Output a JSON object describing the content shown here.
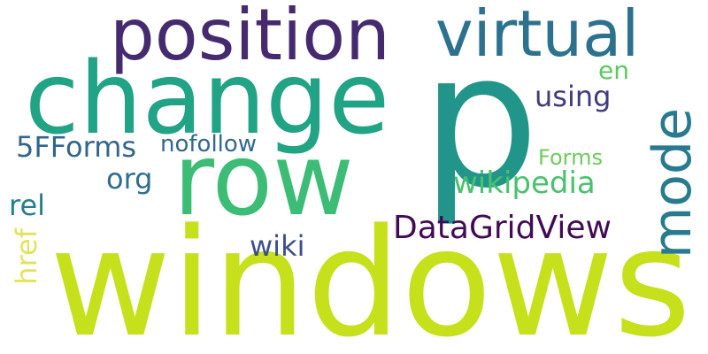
{
  "words": {
    "windows": {
      "text": "windows",
      "color": "#c6e01c"
    },
    "p": {
      "text": "p",
      "color": "#22958b"
    },
    "change": {
      "text": "change",
      "color": "#21a385"
    },
    "row": {
      "text": "row",
      "color": "#3cbc75"
    },
    "position": {
      "text": "position",
      "color": "#462a6f"
    },
    "virtual": {
      "text": "virtual",
      "color": "#2c728e"
    },
    "mode": {
      "text": "mode",
      "color": "#287a8e"
    },
    "datagridview": {
      "text": "DataGridView",
      "color": "#420a54"
    },
    "wikipedia": {
      "text": "wikipedia",
      "color": "#49c16d"
    },
    "fiveFForms": {
      "text": "5FForms",
      "color": "#32648d"
    },
    "nofollow": {
      "text": "nofollow",
      "color": "#31688e"
    },
    "using": {
      "text": "using",
      "color": "#3f3b7e"
    },
    "org": {
      "text": "org",
      "color": "#2d6e8e"
    },
    "rel": {
      "text": "rel",
      "color": "#247f8d"
    },
    "wiki": {
      "text": "wiki",
      "color": "#3c4f8a"
    },
    "href": {
      "text": "href",
      "color": "#e4e25b"
    },
    "forms": {
      "text": "Forms",
      "color": "#6ccd5a"
    },
    "en": {
      "text": "en",
      "color": "#5cc862"
    }
  }
}
